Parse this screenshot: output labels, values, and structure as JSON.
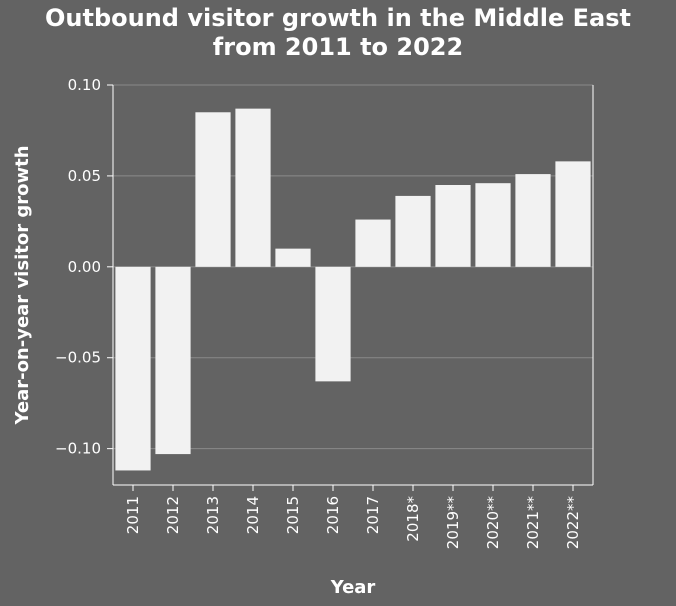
{
  "chart_data": {
    "type": "bar",
    "title_lines": [
      "Outbound visitor growth in the Middle East",
      "from 2011 to 2022"
    ],
    "xlabel": "Year",
    "ylabel": "Year-on-year visitor growth",
    "categories": [
      "2011",
      "2012",
      "2013",
      "2014",
      "2015",
      "2016",
      "2017",
      "2018*",
      "2019**",
      "2020**",
      "2021**",
      "2022**"
    ],
    "values": [
      -0.112,
      -0.103,
      0.085,
      0.087,
      0.01,
      -0.063,
      0.026,
      0.039,
      0.045,
      0.046,
      0.051,
      0.058
    ],
    "ylim": [
      -0.12,
      0.1
    ],
    "yticks": [
      -0.1,
      -0.05,
      0.0,
      0.05,
      0.1
    ],
    "ytick_labels": [
      "−0.10",
      "−0.05",
      "0.00",
      "0.05",
      "0.10"
    ],
    "grid": true,
    "bar_color": "#f2f2f2",
    "background_color": "#636363",
    "grid_color": "#8a8a8a"
  }
}
